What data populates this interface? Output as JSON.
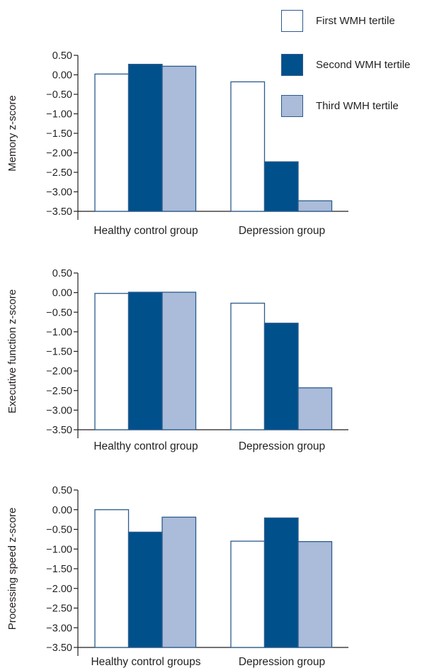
{
  "colors": {
    "first": "#ffffff",
    "second": "#00508c",
    "third": "#aabcd9",
    "bar_edge": "#2c5a8c",
    "axis": "#231f20"
  },
  "legend": [
    {
      "label": "First WMH tertile",
      "color": "#ffffff"
    },
    {
      "label": "Second WMH tertile",
      "color": "#00508c"
    },
    {
      "label": "Third WMH tertile",
      "color": "#aabcd9"
    }
  ],
  "chart_data": [
    {
      "type": "bar",
      "ylabel": "Memory z-score",
      "categories": [
        "Healthy control group",
        "Depression group"
      ],
      "ylim": [
        -3.5,
        0.5
      ],
      "yticks": [
        "0.50",
        "0.00",
        "−0.50",
        "−1.00",
        "−1.50",
        "−2.00",
        "−2.50",
        "−3.00",
        "−3.50"
      ],
      "series": [
        {
          "name": "First WMH tertile",
          "values": [
            0.02,
            -0.18
          ]
        },
        {
          "name": "Second WMH tertile",
          "values": [
            0.27,
            -2.23
          ]
        },
        {
          "name": "Third WMH tertile",
          "values": [
            0.22,
            -3.23
          ]
        }
      ]
    },
    {
      "type": "bar",
      "ylabel": "Executive function z-score",
      "categories": [
        "Healthy control group",
        "Depression group"
      ],
      "ylim": [
        -3.5,
        0.5
      ],
      "yticks": [
        "0.50",
        "0.00",
        "−0.50",
        "−1.00",
        "−1.50",
        "−2.00",
        "−2.50",
        "−3.00",
        "−3.50"
      ],
      "series": [
        {
          "name": "First WMH tertile",
          "values": [
            -0.02,
            -0.27
          ]
        },
        {
          "name": "Second WMH tertile",
          "values": [
            0.01,
            -0.78
          ]
        },
        {
          "name": "Third WMH tertile",
          "values": [
            0.01,
            -2.43
          ]
        }
      ]
    },
    {
      "type": "bar",
      "ylabel": "Processing speed z-score",
      "categories": [
        "Healthy control groups",
        "Depression group"
      ],
      "ylim": [
        -3.5,
        0.5
      ],
      "yticks": [
        "0.50",
        "0.00",
        "−0.50",
        "−1.00",
        "−1.50",
        "−2.00",
        "−2.50",
        "−3.00",
        "−3.50"
      ],
      "series": [
        {
          "name": "First WMH tertile",
          "values": [
            0.0,
            -0.8
          ]
        },
        {
          "name": "Second WMH tertile",
          "values": [
            -0.57,
            -0.21
          ]
        },
        {
          "name": "Third WMH tertile",
          "values": [
            -0.19,
            -0.81
          ]
        }
      ]
    }
  ]
}
